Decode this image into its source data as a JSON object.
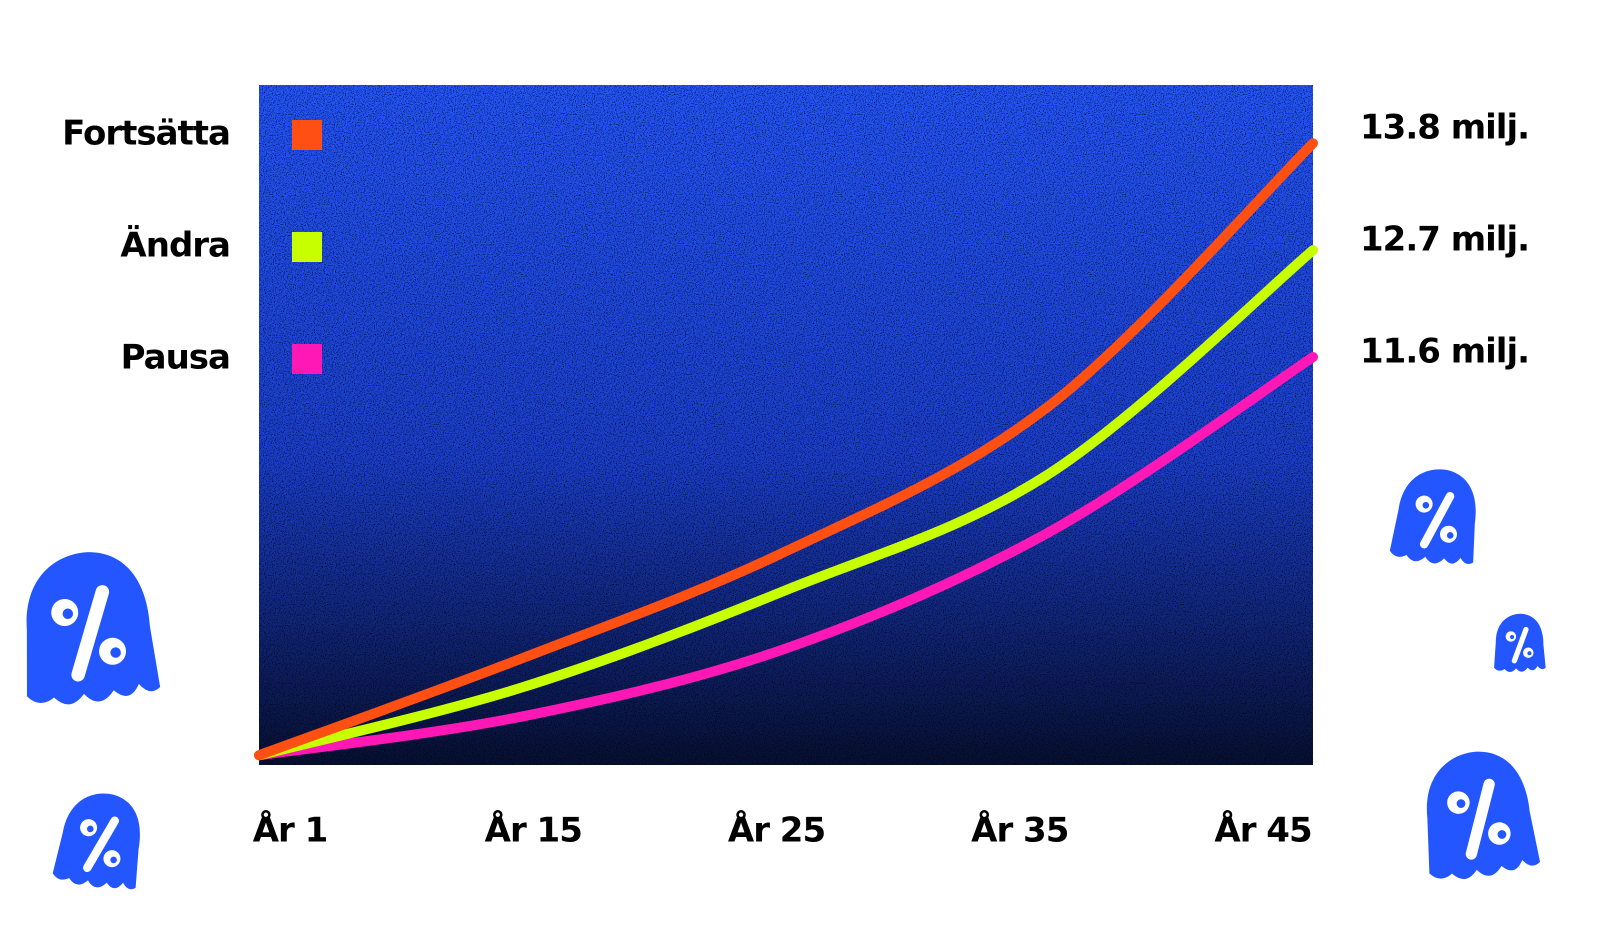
{
  "chart_data": {
    "type": "line",
    "categories": [
      "År 1",
      "År 15",
      "År 25",
      "År 35",
      "År 45"
    ],
    "series": [
      {
        "name": "Fortsätta",
        "color": "#ff4f12",
        "values": [
          7.5,
          8.5,
          9.6,
          11.1,
          13.8
        ],
        "value_labels": [
          null,
          null,
          null,
          null,
          "13.8 milj."
        ]
      },
      {
        "name": "Ändra",
        "color": "#c8ff00",
        "values": [
          7.5,
          8.2,
          9.2,
          10.4,
          12.7
        ],
        "value_labels": [
          null,
          null,
          null,
          null,
          "12.7 milj."
        ]
      },
      {
        "name": "Pausa",
        "color": "#ff18b6",
        "values": [
          7.5,
          7.9,
          8.6,
          9.8,
          11.6
        ],
        "value_labels": [
          null,
          null,
          null,
          null,
          "11.6 milj."
        ]
      }
    ],
    "ylim": [
      7.4,
      14.4
    ],
    "background": "#2356ff"
  }
}
